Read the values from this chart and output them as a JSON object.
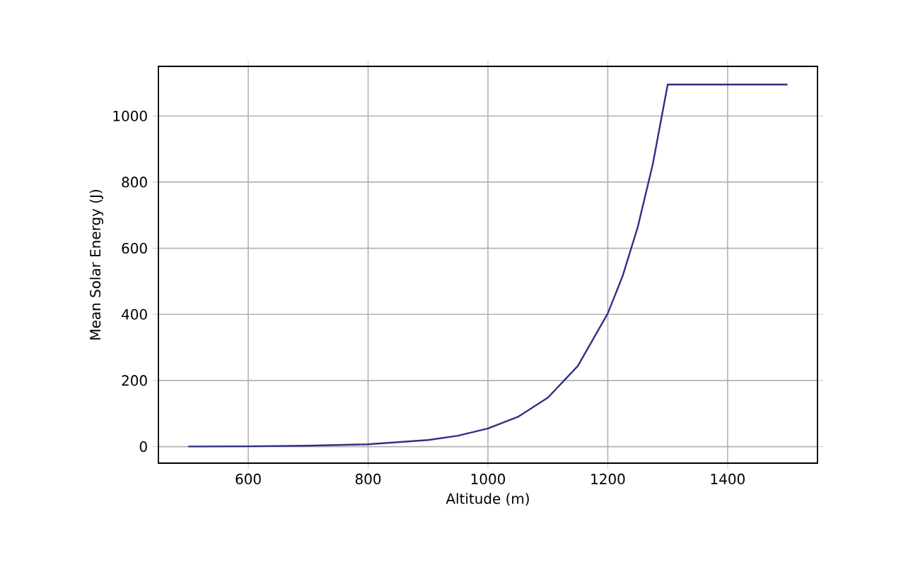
{
  "chart_data": {
    "type": "line",
    "xlabel": "Altitude (m)",
    "ylabel": "Mean Solar Energy (J)",
    "x": [
      500,
      600,
      700,
      800,
      900,
      950,
      1000,
      1050,
      1100,
      1150,
      1200,
      1225,
      1250,
      1275,
      1300,
      1500
    ],
    "series": [
      {
        "color": "#2e3184",
        "values": [
          0.4,
          1,
          3,
          7,
          20,
          33,
          55,
          90,
          148,
          244,
          403,
          517,
          664,
          853,
          1095,
          1095
        ]
      }
    ],
    "xlim": [
      450,
      1550
    ],
    "ylim": [
      -50,
      1150
    ],
    "xticks": [
      600,
      800,
      1000,
      1200,
      1400
    ],
    "yticks": [
      0,
      200,
      400,
      600,
      800,
      1000
    ],
    "grid": true
  }
}
